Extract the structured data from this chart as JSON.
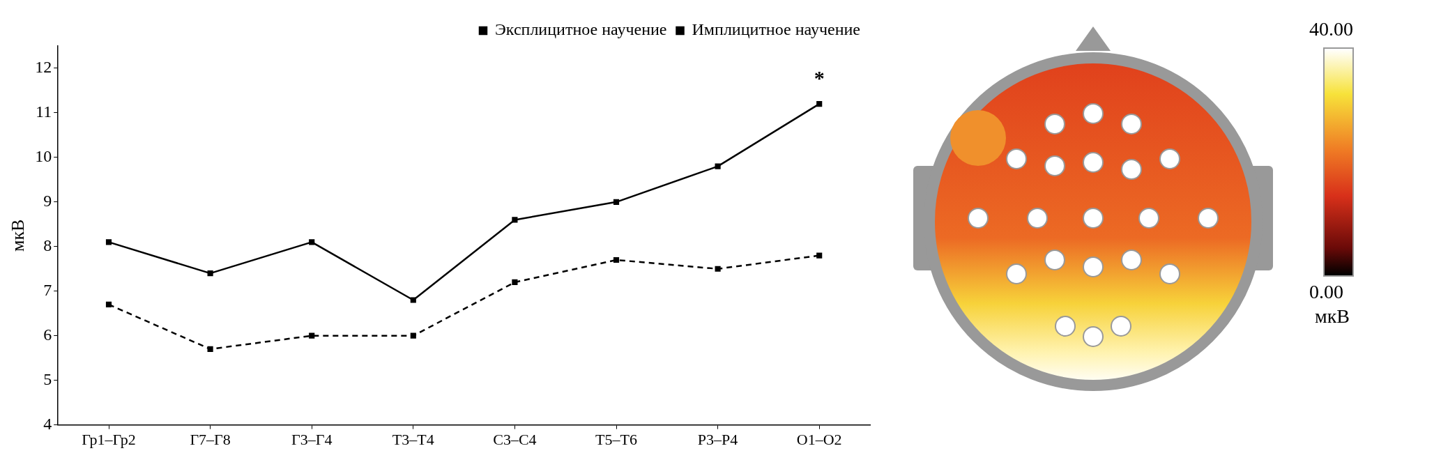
{
  "chart_data": [
    {
      "type": "line",
      "ylabel": "мкВ",
      "categories": [
        "Гр1–Гр2",
        "Г7–Г8",
        "Г3–Г4",
        "Т3–Т4",
        "С3–С4",
        "Т5–Т6",
        "Р3–Р4",
        "О1–О2"
      ],
      "series": [
        {
          "name": "Эксплицитное научение",
          "color": "#000000",
          "line_style": "dashed",
          "values": [
            6.7,
            5.7,
            6.0,
            6.0,
            7.2,
            7.7,
            7.5,
            7.8
          ]
        },
        {
          "name": "Имплицитное научение",
          "color": "#000000",
          "line_style": "solid",
          "values": [
            8.1,
            7.4,
            8.1,
            6.8,
            8.6,
            9.0,
            9.8,
            11.2
          ]
        }
      ],
      "ylim": [
        4,
        12.5
      ],
      "yticks": [
        4,
        5,
        6,
        7,
        8,
        9,
        10,
        11,
        12
      ],
      "marker": "square",
      "legend": "top right",
      "grid": false,
      "annotations": [
        "*"
      ]
    },
    {
      "type": "other",
      "clabel": "мкВ",
      "annotations": [
        "40.00",
        "0.00"
      ]
    }
  ]
}
